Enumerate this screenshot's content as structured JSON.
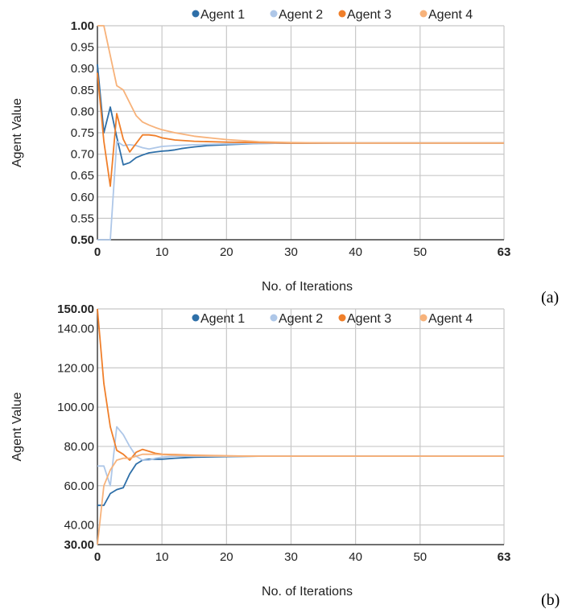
{
  "chart_data": [
    {
      "type": "line",
      "panel_label": "(a)",
      "xlabel": "No. of Iterations",
      "ylabel": "Agent Value",
      "xlim": [
        0,
        63
      ],
      "ylim": [
        0.5,
        1.0
      ],
      "x_ticks": [
        "0",
        "10",
        "20",
        "30",
        "40",
        "50",
        "63"
      ],
      "y_ticks": [
        "0.50",
        "0.55",
        "0.60",
        "0.65",
        "0.70",
        "0.75",
        "0.80",
        "0.85",
        "0.90",
        "0.95",
        "1.00"
      ],
      "grid": true,
      "legend_position": "top",
      "series": [
        {
          "name": "Agent 1",
          "color": "#2e6fa8",
          "x": [
            0,
            1,
            2,
            3,
            4,
            5,
            6,
            7,
            8,
            9,
            10,
            11,
            12,
            13,
            14,
            15,
            17,
            20,
            25,
            30,
            35,
            40,
            50,
            63
          ],
          "y": [
            0.91,
            0.75,
            0.81,
            0.74,
            0.675,
            0.68,
            0.692,
            0.698,
            0.703,
            0.705,
            0.707,
            0.708,
            0.71,
            0.713,
            0.715,
            0.717,
            0.72,
            0.722,
            0.725,
            0.726,
            0.726,
            0.726,
            0.726,
            0.726
          ]
        },
        {
          "name": "Agent 2",
          "color": "#aec7e8",
          "x": [
            0,
            1,
            2,
            3,
            4,
            5,
            6,
            7,
            8,
            9,
            10,
            12,
            15,
            20,
            25,
            30,
            40,
            50,
            63
          ],
          "y": [
            0.5,
            0.5,
            0.5,
            0.73,
            0.72,
            0.722,
            0.72,
            0.715,
            0.712,
            0.715,
            0.718,
            0.72,
            0.722,
            0.724,
            0.725,
            0.726,
            0.726,
            0.726,
            0.726
          ]
        },
        {
          "name": "Agent 3",
          "color": "#f07f2a",
          "x": [
            0,
            1,
            2,
            3,
            4,
            5,
            6,
            7,
            8,
            9,
            10,
            12,
            15,
            20,
            25,
            30,
            40,
            50,
            63
          ],
          "y": [
            0.89,
            0.73,
            0.625,
            0.795,
            0.735,
            0.705,
            0.725,
            0.745,
            0.745,
            0.743,
            0.738,
            0.733,
            0.73,
            0.728,
            0.727,
            0.726,
            0.726,
            0.726,
            0.726
          ]
        },
        {
          "name": "Agent 4",
          "color": "#f7b27a",
          "x": [
            0,
            1,
            2,
            3,
            4,
            5,
            6,
            7,
            8,
            9,
            10,
            12,
            15,
            18,
            20,
            25,
            30,
            40,
            50,
            63
          ],
          "y": [
            1.0,
            1.0,
            0.93,
            0.86,
            0.85,
            0.82,
            0.79,
            0.775,
            0.768,
            0.762,
            0.757,
            0.75,
            0.742,
            0.737,
            0.734,
            0.729,
            0.727,
            0.726,
            0.726,
            0.726
          ]
        }
      ]
    },
    {
      "type": "line",
      "panel_label": "(b)",
      "xlabel": "No. of Iterations",
      "ylabel": "Agent Value",
      "xlim": [
        0,
        63
      ],
      "ylim": [
        30,
        150
      ],
      "x_ticks": [
        "0",
        "10",
        "20",
        "30",
        "40",
        "50",
        "63"
      ],
      "y_ticks": [
        "30.00",
        "40.00",
        "60.00",
        "80.00",
        "100.00",
        "120.00",
        "140.00",
        "150.00"
      ],
      "grid": true,
      "legend_position": "top",
      "series": [
        {
          "name": "Agent 1",
          "color": "#2e6fa8",
          "x": [
            0,
            1,
            2,
            3,
            4,
            5,
            6,
            7,
            8,
            9,
            10,
            12,
            15,
            20,
            25,
            30,
            40,
            50,
            63
          ],
          "y": [
            50,
            50,
            56,
            58,
            59,
            66,
            71,
            73,
            73.5,
            73.5,
            73.5,
            74,
            74.5,
            74.8,
            75,
            75,
            75,
            75,
            75
          ]
        },
        {
          "name": "Agent 2",
          "color": "#aec7e8",
          "x": [
            0,
            1,
            2,
            3,
            4,
            5,
            6,
            7,
            8,
            9,
            10,
            12,
            15,
            20,
            25,
            30,
            40,
            50,
            63
          ],
          "y": [
            70,
            70,
            60,
            90,
            86,
            80,
            75,
            73,
            73,
            74,
            74.5,
            75,
            75,
            75,
            75,
            75,
            75,
            75,
            75
          ]
        },
        {
          "name": "Agent 3",
          "color": "#f07f2a",
          "x": [
            0,
            1,
            2,
            3,
            4,
            5,
            6,
            7,
            8,
            9,
            10,
            12,
            15,
            20,
            25,
            30,
            40,
            50,
            63
          ],
          "y": [
            150,
            112,
            90,
            78,
            76,
            73,
            77,
            78.5,
            77.5,
            76.5,
            76,
            75.8,
            75.5,
            75.2,
            75,
            75,
            75,
            75,
            75
          ]
        },
        {
          "name": "Agent 4",
          "color": "#f7b27a",
          "x": [
            0,
            1,
            2,
            3,
            4,
            5,
            6,
            7,
            8,
            9,
            10,
            12,
            15,
            20,
            25,
            30,
            40,
            50,
            63
          ],
          "y": [
            30,
            60,
            68,
            73,
            74,
            74,
            75,
            76,
            76,
            76,
            75.8,
            75.5,
            75.3,
            75.1,
            75,
            75,
            75,
            75,
            75
          ]
        }
      ]
    }
  ]
}
